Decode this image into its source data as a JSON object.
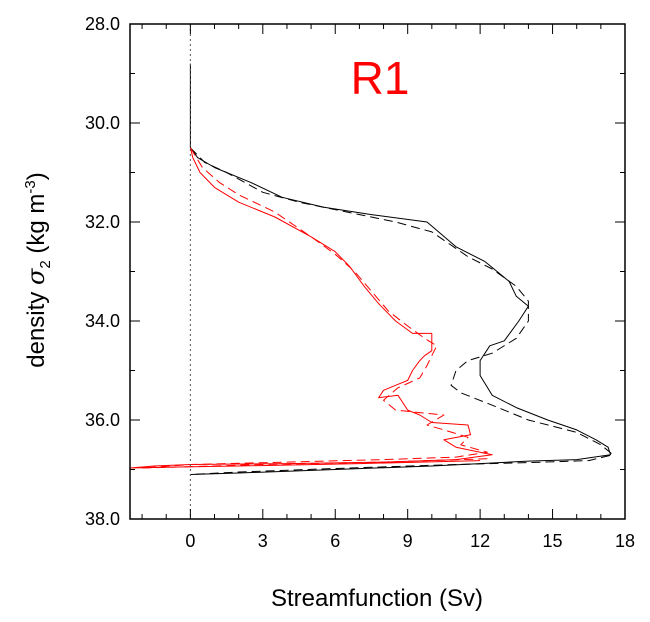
{
  "chart_data": {
    "type": "line",
    "panel_label": "R1",
    "panel_label_color": "#ff0000",
    "xlabel": "Streamfunction (Sv)",
    "ylabel_prefix": "density ",
    "ylabel_symbol": "σ",
    "ylabel_subscript": "2",
    "ylabel_units_pre": " (kg m",
    "ylabel_units_sup": "-3",
    "ylabel_units_post": ")",
    "xlim": [
      -2.5,
      18
    ],
    "ylim": [
      38.0,
      28.0
    ],
    "y_inverted": true,
    "x_ticks": [
      0,
      3,
      6,
      9,
      12,
      15,
      18
    ],
    "x_tick_labels": [
      "0",
      "3",
      "6",
      "9",
      "12",
      "15",
      "18"
    ],
    "y_ticks": [
      28,
      30,
      32,
      34,
      36,
      38
    ],
    "y_tick_labels": [
      "28.0",
      "30.0",
      "32.0",
      "34.0",
      "36.0",
      "38.0"
    ],
    "zero_line": {
      "x": 0,
      "style": "dotted",
      "color": "#555555"
    },
    "series": [
      {
        "color": "#000000",
        "dash": "solid",
        "points": [
          [
            0.0,
            28.8
          ],
          [
            0.0,
            30.2
          ],
          [
            0.0,
            30.5
          ],
          [
            0.3,
            30.7
          ],
          [
            1.0,
            30.9
          ],
          [
            2.5,
            31.2
          ],
          [
            3.8,
            31.5
          ],
          [
            5.5,
            31.7
          ],
          [
            7.5,
            31.85
          ],
          [
            9.8,
            32.0
          ],
          [
            11.0,
            32.5
          ],
          [
            12.2,
            32.8
          ],
          [
            13.2,
            33.2
          ],
          [
            13.5,
            33.5
          ],
          [
            14.0,
            33.7
          ],
          [
            13.6,
            34.0
          ],
          [
            13.0,
            34.4
          ],
          [
            12.4,
            34.5
          ],
          [
            12.0,
            34.8
          ],
          [
            12.0,
            35.1
          ],
          [
            12.5,
            35.5
          ],
          [
            13.5,
            35.75
          ],
          [
            14.8,
            36.0
          ],
          [
            16.0,
            36.2
          ],
          [
            16.8,
            36.4
          ],
          [
            17.3,
            36.55
          ],
          [
            17.4,
            36.7
          ],
          [
            16.0,
            36.8
          ],
          [
            14.0,
            36.83
          ],
          [
            12.0,
            36.88
          ],
          [
            10.0,
            36.93
          ],
          [
            6.0,
            37.0
          ],
          [
            2.0,
            37.07
          ],
          [
            0.0,
            37.1
          ]
        ]
      },
      {
        "color": "#000000",
        "dash": "dashed",
        "points": [
          [
            0.0,
            30.5
          ],
          [
            0.6,
            30.8
          ],
          [
            1.5,
            31.0
          ],
          [
            3.0,
            31.4
          ],
          [
            4.5,
            31.6
          ],
          [
            6.5,
            31.8
          ],
          [
            8.5,
            32.0
          ],
          [
            10.0,
            32.2
          ],
          [
            11.5,
            32.7
          ],
          [
            12.5,
            32.95
          ],
          [
            13.5,
            33.3
          ],
          [
            14.0,
            33.6
          ],
          [
            14.0,
            34.0
          ],
          [
            13.5,
            34.35
          ],
          [
            12.5,
            34.65
          ],
          [
            11.5,
            34.8
          ],
          [
            11.0,
            35.0
          ],
          [
            10.8,
            35.3
          ],
          [
            11.2,
            35.45
          ],
          [
            12.5,
            35.7
          ],
          [
            14.0,
            36.0
          ],
          [
            16.0,
            36.25
          ],
          [
            17.0,
            36.5
          ],
          [
            17.5,
            36.7
          ],
          [
            16.5,
            36.82
          ],
          [
            14.0,
            36.86
          ],
          [
            11.0,
            36.9
          ],
          [
            6.0,
            36.98
          ],
          [
            2.0,
            37.05
          ],
          [
            0.0,
            37.1
          ]
        ]
      },
      {
        "color": "#ff0000",
        "dash": "solid",
        "points": [
          [
            0.0,
            30.5
          ],
          [
            0.1,
            30.7
          ],
          [
            0.4,
            31.0
          ],
          [
            1.0,
            31.3
          ],
          [
            2.0,
            31.6
          ],
          [
            3.5,
            31.9
          ],
          [
            5.0,
            32.3
          ],
          [
            6.0,
            32.6
          ],
          [
            6.6,
            32.9
          ],
          [
            7.2,
            33.3
          ],
          [
            7.8,
            33.65
          ],
          [
            8.5,
            34.0
          ],
          [
            9.2,
            34.25
          ],
          [
            10.0,
            34.25
          ],
          [
            10.0,
            34.6
          ],
          [
            9.7,
            34.7
          ],
          [
            9.5,
            34.8
          ],
          [
            9.2,
            35.0
          ],
          [
            9.0,
            35.2
          ],
          [
            8.5,
            35.3
          ],
          [
            8.0,
            35.4
          ],
          [
            7.8,
            35.55
          ],
          [
            8.6,
            35.5
          ],
          [
            9.0,
            35.8
          ],
          [
            9.5,
            35.9
          ],
          [
            10.0,
            36.05
          ],
          [
            11.5,
            36.1
          ],
          [
            11.6,
            36.3
          ],
          [
            10.5,
            36.4
          ],
          [
            11.0,
            36.55
          ],
          [
            12.5,
            36.7
          ],
          [
            11.0,
            36.8
          ],
          [
            8.0,
            36.85
          ],
          [
            4.0,
            36.88
          ],
          [
            0.0,
            36.9
          ],
          [
            -1.5,
            36.93
          ],
          [
            -2.5,
            36.97
          ],
          [
            -0.5,
            36.95
          ],
          [
            2.0,
            36.93
          ],
          [
            7.0,
            36.88
          ],
          [
            12.0,
            36.82
          ]
        ]
      },
      {
        "color": "#ff0000",
        "dash": "dashed",
        "points": [
          [
            0.0,
            30.5
          ],
          [
            0.5,
            30.9
          ],
          [
            1.2,
            31.2
          ],
          [
            2.0,
            31.45
          ],
          [
            3.5,
            31.8
          ],
          [
            5.0,
            32.3
          ],
          [
            6.0,
            32.65
          ],
          [
            6.8,
            33.0
          ],
          [
            7.5,
            33.4
          ],
          [
            8.2,
            33.8
          ],
          [
            9.0,
            34.1
          ],
          [
            9.7,
            34.35
          ],
          [
            10.2,
            34.5
          ],
          [
            10.0,
            34.7
          ],
          [
            9.8,
            34.9
          ],
          [
            9.5,
            35.15
          ],
          [
            8.6,
            35.35
          ],
          [
            8.0,
            35.6
          ],
          [
            8.5,
            35.8
          ],
          [
            9.5,
            35.85
          ],
          [
            10.5,
            35.9
          ],
          [
            9.8,
            36.1
          ],
          [
            10.5,
            36.2
          ],
          [
            11.5,
            36.35
          ],
          [
            11.2,
            36.5
          ],
          [
            12.3,
            36.65
          ],
          [
            11.0,
            36.75
          ],
          [
            8.0,
            36.8
          ],
          [
            4.0,
            36.85
          ],
          [
            0.0,
            36.9
          ],
          [
            -2.0,
            36.97
          ],
          [
            -0.5,
            36.95
          ],
          [
            3.0,
            36.9
          ],
          [
            8.0,
            36.85
          ],
          [
            12.5,
            36.78
          ]
        ]
      }
    ]
  }
}
